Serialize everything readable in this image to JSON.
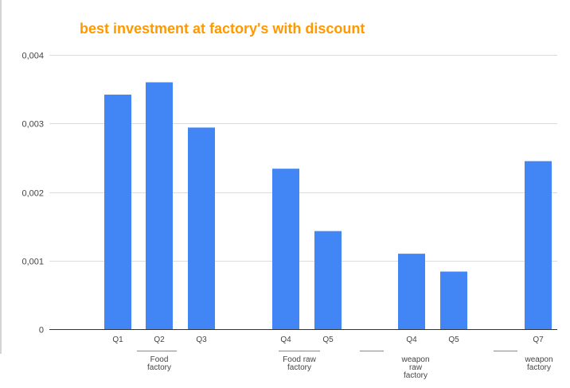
{
  "chart_data": {
    "type": "bar",
    "title": "best investment at  factory's with discount",
    "xlabel": "",
    "ylabel": "",
    "ylim": [
      0,
      0.004
    ],
    "y_ticks": [
      "0",
      "0,001",
      "0,002",
      "0,003",
      "0,004"
    ],
    "grid": true,
    "legend": "none",
    "color": "#4285f4",
    "title_color": "#ff9900",
    "categories": [
      "Q1",
      "Q2",
      "Q3",
      "Q4",
      "Q5",
      "Q4",
      "Q5",
      "Q7"
    ],
    "values": [
      0.00342,
      0.0036,
      0.00294,
      0.00234,
      0.00143,
      0.0011,
      0.00084,
      0.00245
    ],
    "groups": [
      {
        "label_lines": [
          "Food",
          "factory"
        ]
      },
      {
        "label_lines": [
          "Food raw",
          "factory"
        ]
      },
      {
        "label_lines": [
          "weapon",
          "raw",
          "factory"
        ]
      },
      {
        "label_lines": [
          "weapon",
          "factory"
        ]
      }
    ]
  }
}
